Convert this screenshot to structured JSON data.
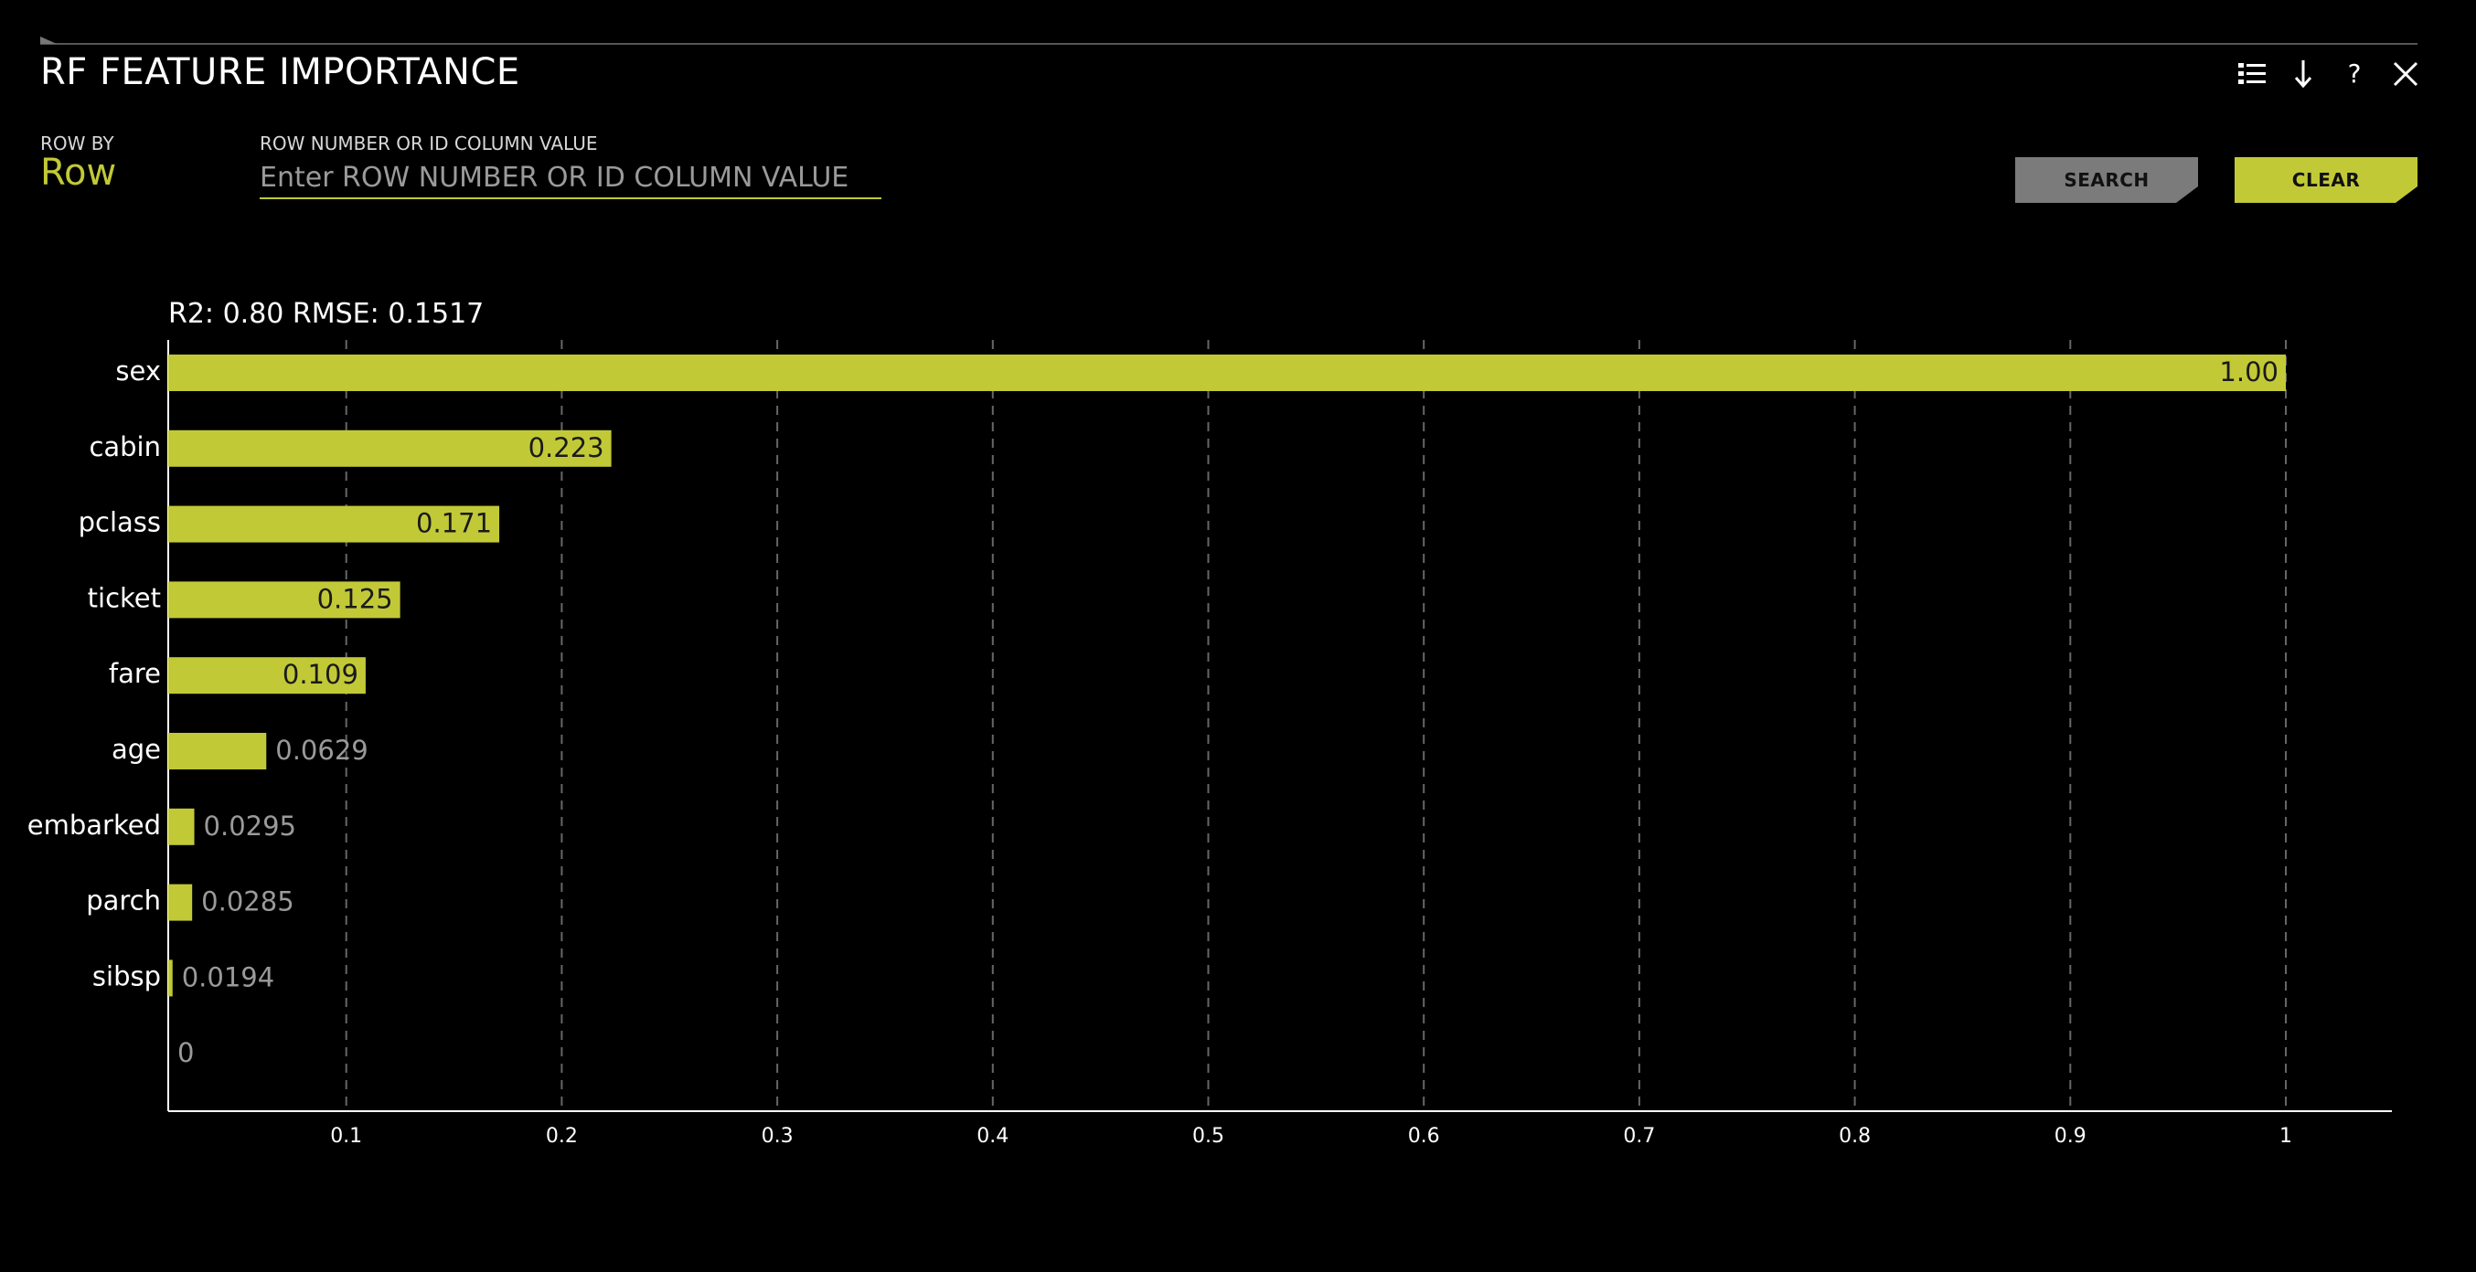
{
  "header": {
    "title": "RF FEATURE IMPORTANCE"
  },
  "toolbar": {
    "icons": [
      "list-view-icon",
      "download-arrow-icon",
      "help-icon",
      "close-icon"
    ],
    "help_glyph": "?"
  },
  "controls": {
    "row_by_label": "ROW BY",
    "row_by_value": "Row",
    "row_number_label": "ROW NUMBER OR ID COLUMN VALUE",
    "row_number_placeholder": "Enter ROW NUMBER OR ID COLUMN VALUE",
    "row_number_value": "",
    "search_label": "SEARCH",
    "clear_label": "CLEAR"
  },
  "colors": {
    "accent": "#c2c937",
    "background": "#000000",
    "search_button": "#7b7b7b",
    "axis": "#ffffff",
    "gridline": "#666666",
    "value_label": "#9a9a9a"
  },
  "chart_data": {
    "type": "bar",
    "orientation": "horizontal",
    "title": "R2: 0.80 RMSE: 0.1517",
    "xlabel": "",
    "ylabel": "",
    "categories": [
      "sex",
      "cabin",
      "pclass",
      "ticket",
      "fare",
      "age",
      "embarked",
      "parch",
      "sibsp",
      ""
    ],
    "values": [
      1.0,
      0.223,
      0.171,
      0.125,
      0.109,
      0.0629,
      0.0295,
      0.0285,
      0.0194,
      0
    ],
    "value_labels": [
      "1.00",
      "0.223",
      "0.171",
      "0.125",
      "0.109",
      "0.0629",
      "0.0295",
      "0.0285",
      "0.0194",
      "0"
    ],
    "xlim": [
      0.0183,
      1.05
    ],
    "xticks": [
      0.1,
      0.2,
      0.3,
      0.4,
      0.5,
      0.6,
      0.7,
      0.8,
      0.9,
      1
    ],
    "xtick_labels": [
      "0.1",
      "0.2",
      "0.3",
      "0.4",
      "0.5",
      "0.6",
      "0.7",
      "0.8",
      "0.9",
      "1"
    ],
    "grid": "vertical-dashed",
    "legend": "none"
  }
}
